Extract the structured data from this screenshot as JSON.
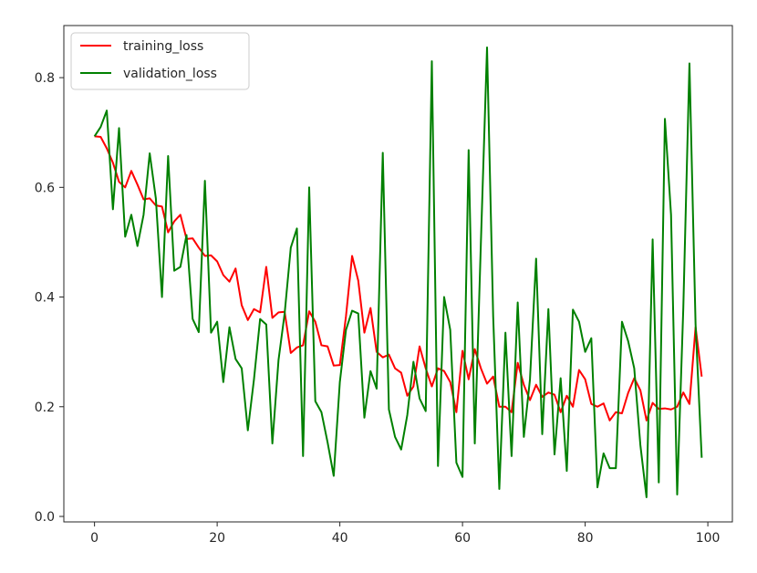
{
  "chart_data": {
    "type": "line",
    "title": "",
    "xlabel": "",
    "ylabel": "",
    "xlim": [
      -5,
      104
    ],
    "ylim": [
      -0.01,
      0.895
    ],
    "xticks": [
      0,
      20,
      40,
      60,
      80,
      100
    ],
    "yticks": [
      0.0,
      0.2,
      0.4,
      0.6,
      0.8
    ],
    "xtick_labels": [
      "0",
      "20",
      "40",
      "60",
      "80",
      "100"
    ],
    "ytick_labels": [
      "0.0",
      "0.2",
      "0.4",
      "0.6",
      "0.8"
    ],
    "grid": false,
    "legend_position": "top-left",
    "x": [
      0,
      1,
      2,
      3,
      4,
      5,
      6,
      7,
      8,
      9,
      10,
      11,
      12,
      13,
      14,
      15,
      16,
      17,
      18,
      19,
      20,
      21,
      22,
      23,
      24,
      25,
      26,
      27,
      28,
      29,
      30,
      31,
      32,
      33,
      34,
      35,
      36,
      37,
      38,
      39,
      40,
      41,
      42,
      43,
      44,
      45,
      46,
      47,
      48,
      49,
      50,
      51,
      52,
      53,
      54,
      55,
      56,
      57,
      58,
      59,
      60,
      61,
      62,
      63,
      64,
      65,
      66,
      67,
      68,
      69,
      70,
      71,
      72,
      73,
      74,
      75,
      76,
      77,
      78,
      79,
      80,
      81,
      82,
      83,
      84,
      85,
      86,
      87,
      88,
      89,
      90,
      91,
      92,
      93,
      94,
      95,
      96,
      97,
      98,
      99
    ],
    "series": [
      {
        "name": "training_loss",
        "color": "#ff0000",
        "values": [
          0.693,
          0.692,
          0.671,
          0.645,
          0.61,
          0.6,
          0.63,
          0.605,
          0.578,
          0.58,
          0.567,
          0.565,
          0.518,
          0.538,
          0.55,
          0.506,
          0.507,
          0.49,
          0.475,
          0.476,
          0.465,
          0.44,
          0.428,
          0.452,
          0.385,
          0.358,
          0.378,
          0.372,
          0.455,
          0.362,
          0.372,
          0.373,
          0.298,
          0.308,
          0.312,
          0.374,
          0.355,
          0.312,
          0.31,
          0.275,
          0.276,
          0.365,
          0.475,
          0.43,
          0.335,
          0.38,
          0.3,
          0.29,
          0.295,
          0.27,
          0.262,
          0.22,
          0.237,
          0.31,
          0.27,
          0.237,
          0.27,
          0.265,
          0.245,
          0.19,
          0.302,
          0.25,
          0.305,
          0.27,
          0.242,
          0.255,
          0.2,
          0.2,
          0.19,
          0.28,
          0.24,
          0.212,
          0.24,
          0.218,
          0.226,
          0.222,
          0.19,
          0.22,
          0.2,
          0.267,
          0.25,
          0.205,
          0.2,
          0.206,
          0.175,
          0.19,
          0.188,
          0.225,
          0.252,
          0.23,
          0.175,
          0.207,
          0.196,
          0.197,
          0.195,
          0.2,
          0.226,
          0.205,
          0.345,
          0.255
        ]
      },
      {
        "name": "validation_loss",
        "color": "#008000",
        "values": [
          0.693,
          0.71,
          0.74,
          0.56,
          0.708,
          0.51,
          0.55,
          0.493,
          0.55,
          0.662,
          0.58,
          0.4,
          0.657,
          0.448,
          0.455,
          0.513,
          0.36,
          0.336,
          0.612,
          0.335,
          0.355,
          0.245,
          0.345,
          0.287,
          0.27,
          0.157,
          0.25,
          0.36,
          0.35,
          0.133,
          0.285,
          0.37,
          0.49,
          0.525,
          0.11,
          0.6,
          0.21,
          0.19,
          0.135,
          0.074,
          0.245,
          0.34,
          0.375,
          0.37,
          0.18,
          0.265,
          0.233,
          0.663,
          0.195,
          0.145,
          0.122,
          0.185,
          0.282,
          0.215,
          0.192,
          0.83,
          0.092,
          0.4,
          0.34,
          0.098,
          0.072,
          0.668,
          0.133,
          0.5,
          0.855,
          0.365,
          0.05,
          0.335,
          0.11,
          0.39,
          0.145,
          0.25,
          0.47,
          0.15,
          0.378,
          0.113,
          0.252,
          0.083,
          0.377,
          0.355,
          0.3,
          0.325,
          0.053,
          0.115,
          0.088,
          0.088,
          0.355,
          0.32,
          0.27,
          0.13,
          0.035,
          0.505,
          0.062,
          0.725,
          0.55,
          0.04,
          0.38,
          0.826,
          0.35,
          0.107
        ]
      }
    ]
  }
}
